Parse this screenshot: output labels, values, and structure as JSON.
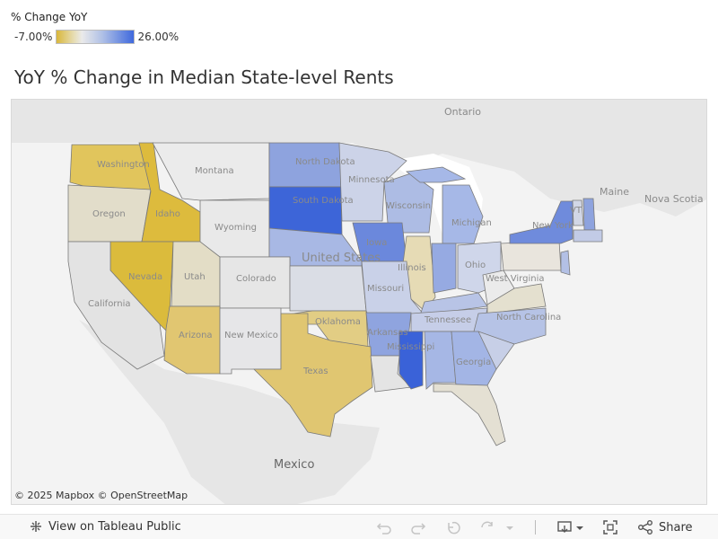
{
  "legend": {
    "title": "% Change YoY",
    "min": "-7.00%",
    "max": "26.00%",
    "min_color": "#d9b73c",
    "mid_color": "#eaeaea",
    "max_color": "#3f69dd"
  },
  "title": "YoY % Change in Median State-level Rents",
  "map": {
    "attribution": "© 2025 Mapbox  © OpenStreetMap",
    "labels": {
      "ontario": "Ontario",
      "maine": "Maine",
      "nova_scotia": "Nova Scotia",
      "mexico": "Mexico",
      "united_states": "United States",
      "washington": "Washington",
      "oregon": "Oregon",
      "idaho": "Idaho",
      "montana": "Montana",
      "wyoming": "Wyoming",
      "north_dakota": "North Dakota",
      "south_dakota": "South Dakota",
      "minnesota": "Minnesota",
      "wisconsin": "Wisconsin",
      "michigan": "Michigan",
      "iowa": "Iowa",
      "illinois": "Illinois",
      "ohio": "Ohio",
      "nevada": "Nevada",
      "utah": "Utah",
      "colorado": "Colorado",
      "california": "California",
      "missouri": "Missouri",
      "new_york": "New York",
      "west_virginia": "West Virginia",
      "arizona": "Arizona",
      "new_mexico": "New Mexico",
      "oklahoma": "Oklahoma",
      "arkansas": "Arkansas",
      "tennessee": "Tennessee",
      "north_carolina": "North Carolina",
      "mississippi": "Mississippi",
      "georgia": "Georgia",
      "texas": "Texas",
      "vt": "VT"
    }
  },
  "toolbar": {
    "view_label": "View on Tableau Public",
    "share_label": "Share"
  }
}
